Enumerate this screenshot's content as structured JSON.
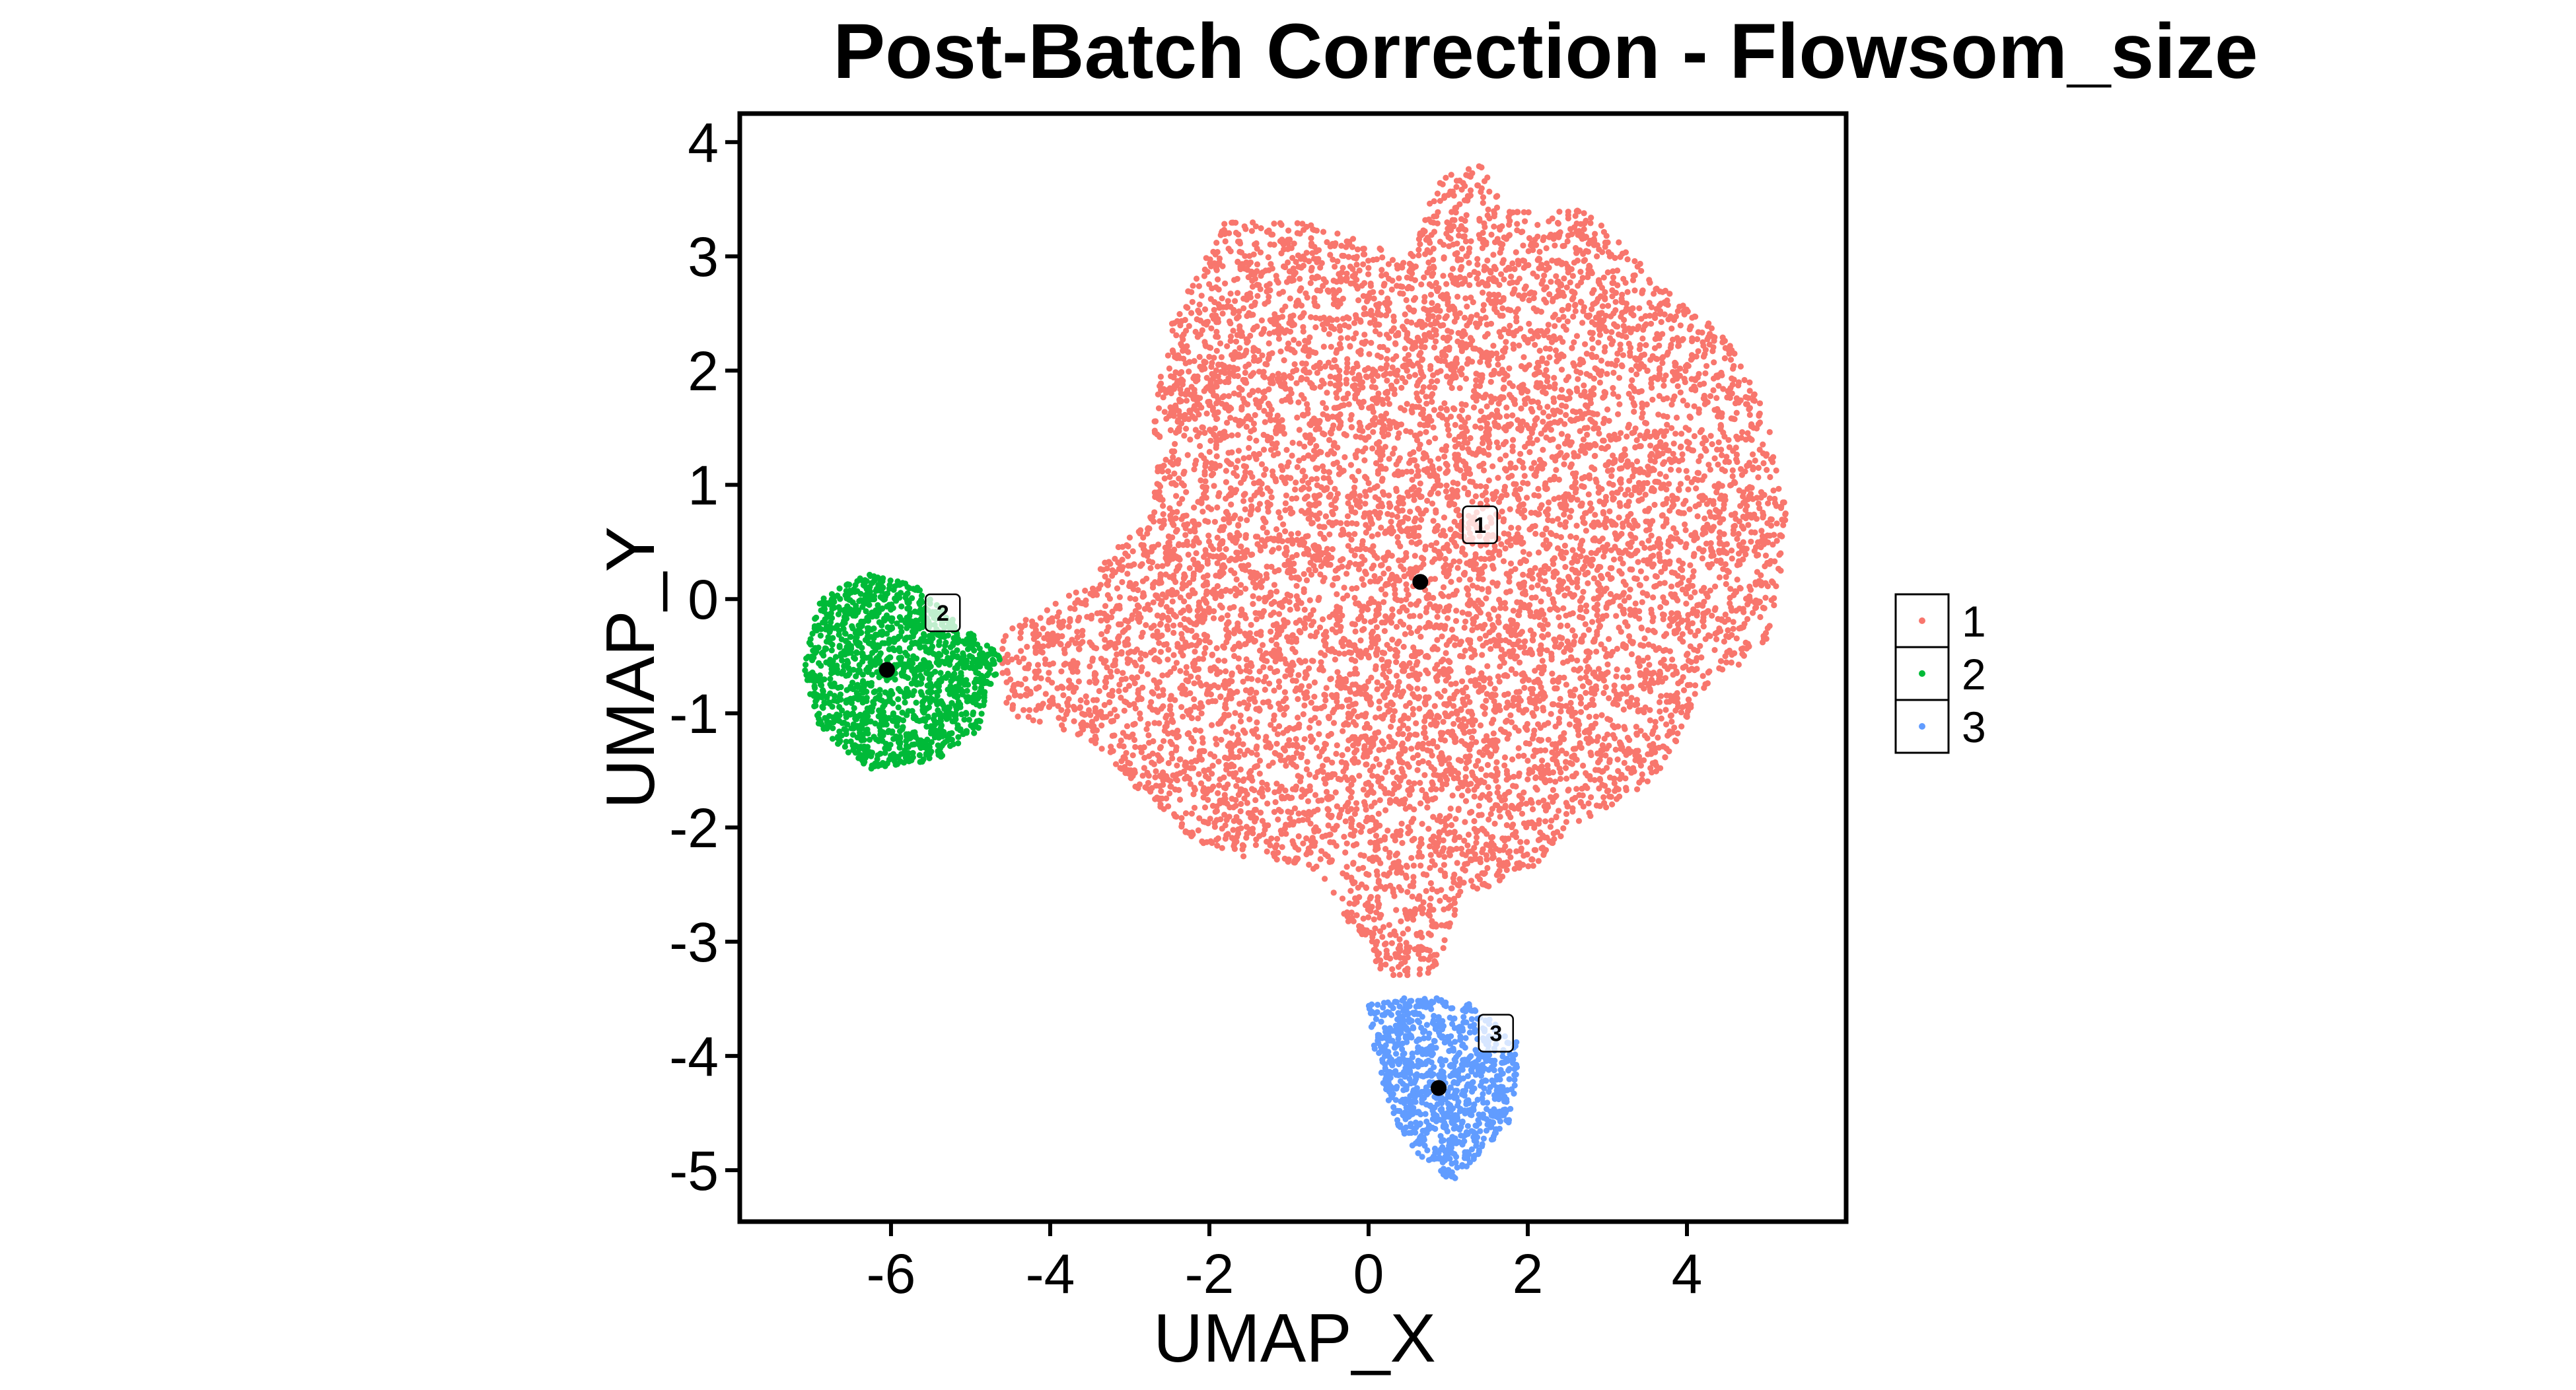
{
  "chart_data": {
    "type": "scatter",
    "title": "Post-Batch Correction - Flowsom_size",
    "xlabel": "UMAP_X",
    "ylabel": "UMAP_Y",
    "xlim": [
      -7.9,
      6.0
    ],
    "ylim": [
      -5.45,
      4.25
    ],
    "x_ticks": [
      -6,
      -4,
      -2,
      0,
      2,
      4
    ],
    "y_ticks": [
      -5,
      -4,
      -3,
      -2,
      -1,
      0,
      1,
      2,
      3,
      4
    ],
    "grid": false,
    "legend_position": "right",
    "series": [
      {
        "name": "1",
        "color": "#F8766D",
        "centroid": [
          0.65,
          0.15
        ],
        "label_position": [
          1.4,
          0.65
        ],
        "region": [
          [
            -2.5,
            2.4
          ],
          [
            -1.8,
            3.3
          ],
          [
            -0.8,
            3.3
          ],
          [
            0.5,
            3.0
          ],
          [
            0.9,
            3.7
          ],
          [
            1.4,
            3.8
          ],
          [
            1.8,
            3.4
          ],
          [
            2.8,
            3.4
          ],
          [
            3.6,
            2.8
          ],
          [
            4.5,
            2.3
          ],
          [
            5.0,
            1.6
          ],
          [
            5.3,
            0.6
          ],
          [
            5.0,
            -0.4
          ],
          [
            4.2,
            -0.8
          ],
          [
            3.6,
            -1.6
          ],
          [
            2.6,
            -2.0
          ],
          [
            2.0,
            -2.4
          ],
          [
            1.2,
            -2.6
          ],
          [
            0.8,
            -3.3
          ],
          [
            0.2,
            -3.3
          ],
          [
            -0.2,
            -2.9
          ],
          [
            -0.6,
            -2.4
          ],
          [
            -1.2,
            -2.3
          ],
          [
            -2.1,
            -2.2
          ],
          [
            -3.0,
            -1.6
          ],
          [
            -3.6,
            -1.2
          ],
          [
            -4.6,
            -1.0
          ],
          [
            -4.6,
            -0.3
          ],
          [
            -3.6,
            0.1
          ],
          [
            -2.7,
            0.8
          ],
          [
            -2.7,
            1.6
          ]
        ],
        "n_points": 9000
      },
      {
        "name": "2",
        "color": "#00BA38",
        "centroid": [
          -6.05,
          -0.62
        ],
        "label_position": [
          -5.35,
          -0.12
        ],
        "region": [
          [
            -7.1,
            -0.6
          ],
          [
            -6.9,
            0.0
          ],
          [
            -6.3,
            0.22
          ],
          [
            -5.7,
            0.12
          ],
          [
            -5.1,
            -0.25
          ],
          [
            -4.6,
            -0.5
          ],
          [
            -4.9,
            -1.15
          ],
          [
            -5.4,
            -1.4
          ],
          [
            -6.3,
            -1.5
          ],
          [
            -6.9,
            -1.15
          ]
        ],
        "n_points": 1400
      },
      {
        "name": "3",
        "color": "#619CFF",
        "centroid": [
          0.88,
          -4.28
        ],
        "label_position": [
          1.6,
          -3.8
        ],
        "region": [
          [
            0.0,
            -3.55
          ],
          [
            0.6,
            -3.45
          ],
          [
            1.3,
            -3.55
          ],
          [
            1.9,
            -3.9
          ],
          [
            1.8,
            -4.55
          ],
          [
            1.3,
            -4.95
          ],
          [
            1.05,
            -5.1
          ],
          [
            0.6,
            -4.85
          ],
          [
            0.35,
            -4.6
          ],
          [
            0.1,
            -4.1
          ]
        ],
        "n_points": 900
      }
    ]
  }
}
